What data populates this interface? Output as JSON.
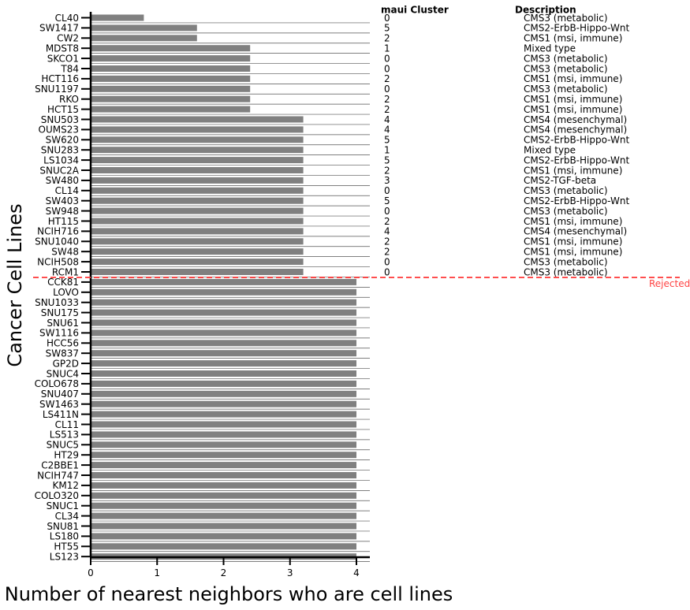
{
  "chart_data": {
    "type": "bar",
    "orientation": "horizontal",
    "xlabel": "Number of nearest neighbors who are cell lines",
    "ylabel": "Cancer Cell Lines",
    "xlim": [
      0,
      4.2
    ],
    "xticks": [
      0,
      1,
      2,
      3,
      4
    ],
    "grid": "horizontal separator lines between rows",
    "bar_color": "#808080",
    "threshold": {
      "label": "Rejected",
      "color": "#ff4444",
      "position_between": [
        "RCM1",
        "CCK81"
      ]
    },
    "table_headers": {
      "cluster": "maui Cluster",
      "description": "Description"
    },
    "categories": [
      "CL40",
      "SW1417",
      "CW2",
      "MDST8",
      "SKCO1",
      "T84",
      "HCT116",
      "SNU1197",
      "RKO",
      "HCT15",
      "SNU503",
      "OUMS23",
      "SW620",
      "SNU283",
      "LS1034",
      "SNUC2A",
      "SW480",
      "CL14",
      "SW403",
      "SW948",
      "HT115",
      "NCIH716",
      "SNU1040",
      "SW48",
      "NCIH508",
      "RCM1",
      "CCK81",
      "LOVO",
      "SNU1033",
      "SNU175",
      "SNU61",
      "SW1116",
      "HCC56",
      "SW837",
      "GP2D",
      "SNUC4",
      "COLO678",
      "SNU407",
      "SW1463",
      "LS411N",
      "CL11",
      "LS513",
      "SNUC5",
      "HT29",
      "C2BBE1",
      "NCIH747",
      "KM12",
      "COLO320",
      "SNUC1",
      "CL34",
      "SNU81",
      "LS180",
      "HT55",
      "LS123"
    ],
    "values": [
      0.8,
      1.6,
      1.6,
      2.4,
      2.4,
      2.4,
      2.4,
      2.4,
      2.4,
      2.4,
      3.2,
      3.2,
      3.2,
      3.2,
      3.2,
      3.2,
      3.2,
      3.2,
      3.2,
      3.2,
      3.2,
      3.2,
      3.2,
      3.2,
      3.2,
      3.2,
      4,
      4,
      4,
      4,
      4,
      4,
      4,
      4,
      4,
      4,
      4,
      4,
      4,
      4,
      4,
      4,
      4,
      4,
      4,
      4,
      4,
      4,
      4,
      4,
      4,
      4,
      4,
      4
    ],
    "rejected_annotations": [
      {
        "cell_line": "CL40",
        "cluster": "0",
        "description": "CMS3 (metabolic)"
      },
      {
        "cell_line": "SW1417",
        "cluster": "5",
        "description": "CMS2-ErbB-Hippo-Wnt"
      },
      {
        "cell_line": "CW2",
        "cluster": "2",
        "description": "CMS1 (msi, immune)"
      },
      {
        "cell_line": "MDST8",
        "cluster": "1",
        "description": "Mixed type"
      },
      {
        "cell_line": "SKCO1",
        "cluster": "0",
        "description": "CMS3 (metabolic)"
      },
      {
        "cell_line": "T84",
        "cluster": "0",
        "description": "CMS3 (metabolic)"
      },
      {
        "cell_line": "HCT116",
        "cluster": "2",
        "description": "CMS1 (msi, immune)"
      },
      {
        "cell_line": "SNU1197",
        "cluster": "0",
        "description": "CMS3 (metabolic)"
      },
      {
        "cell_line": "RKO",
        "cluster": "2",
        "description": "CMS1 (msi, immune)"
      },
      {
        "cell_line": "HCT15",
        "cluster": "2",
        "description": "CMS1 (msi, immune)"
      },
      {
        "cell_line": "SNU503",
        "cluster": "4",
        "description": "CMS4 (mesenchymal)"
      },
      {
        "cell_line": "OUMS23",
        "cluster": "4",
        "description": "CMS4 (mesenchymal)"
      },
      {
        "cell_line": "SW620",
        "cluster": "5",
        "description": "CMS2-ErbB-Hippo-Wnt"
      },
      {
        "cell_line": "SNU283",
        "cluster": "1",
        "description": "Mixed type"
      },
      {
        "cell_line": "LS1034",
        "cluster": "5",
        "description": "CMS2-ErbB-Hippo-Wnt"
      },
      {
        "cell_line": "SNUC2A",
        "cluster": "2",
        "description": "CMS1 (msi, immune)"
      },
      {
        "cell_line": "SW480",
        "cluster": "3",
        "description": "CMS2-TGF-beta"
      },
      {
        "cell_line": "CL14",
        "cluster": "0",
        "description": "CMS3 (metabolic)"
      },
      {
        "cell_line": "SW403",
        "cluster": "5",
        "description": "CMS2-ErbB-Hippo-Wnt"
      },
      {
        "cell_line": "SW948",
        "cluster": "0",
        "description": "CMS3 (metabolic)"
      },
      {
        "cell_line": "HT115",
        "cluster": "2",
        "description": "CMS1 (msi, immune)"
      },
      {
        "cell_line": "NCIH716",
        "cluster": "4",
        "description": "CMS4 (mesenchymal)"
      },
      {
        "cell_line": "SNU1040",
        "cluster": "2",
        "description": "CMS1 (msi, immune)"
      },
      {
        "cell_line": "SW48",
        "cluster": "2",
        "description": "CMS1 (msi, immune)"
      },
      {
        "cell_line": "NCIH508",
        "cluster": "0",
        "description": "CMS3 (metabolic)"
      },
      {
        "cell_line": "RCM1",
        "cluster": "0",
        "description": "CMS3 (metabolic)"
      }
    ]
  }
}
